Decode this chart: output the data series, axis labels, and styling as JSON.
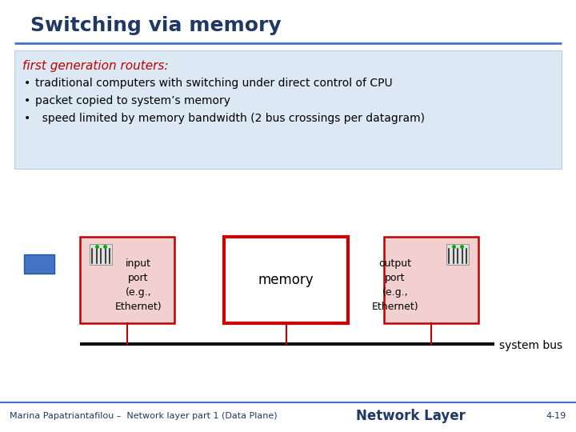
{
  "title": "Switching via memory",
  "title_color": "#1f3864",
  "title_fontsize": 18,
  "divider_color": "#4472c4",
  "bg_box_color": "#dce9f5",
  "bg_box_edge_color": "#b8cfe4",
  "subtitle": "first generation routers:",
  "subtitle_color": "#c00000",
  "subtitle_fontsize": 11,
  "bullets": [
    "traditional computers with switching under direct control of CPU",
    "packet copied to system’s memory",
    "  speed limited by memory bandwidth (2 bus crossings per datagram)"
  ],
  "bullet_fontsize": 10,
  "bullet_color": "#000000",
  "input_box_color": "#c00000",
  "input_box_facecolor": "#f2d0d0",
  "memory_box_color": "#cc0000",
  "memory_box_facecolor": "#ffffff",
  "output_box_color": "#c00000",
  "output_box_facecolor": "#f2d0d0",
  "bus_color": "#111111",
  "connector_color": "#c00000",
  "system_bus_label": "system bus",
  "memory_label": "memory",
  "input_label": "input\nport\n(e.g.,\nEthernet)",
  "output_label": "output\nport\n(e.g.,\nEthernet)",
  "footer_left": "Marina Papatriantafilou –  Network layer part 1 (Data Plane)",
  "footer_right": "4-19",
  "footer_middle": "Network Layer",
  "footer_color": "#1f3864",
  "footer_fontsize": 8,
  "footer_middle_fontsize": 12,
  "bg_color": "#ffffff",
  "blue_rect_color": "#4472c4"
}
